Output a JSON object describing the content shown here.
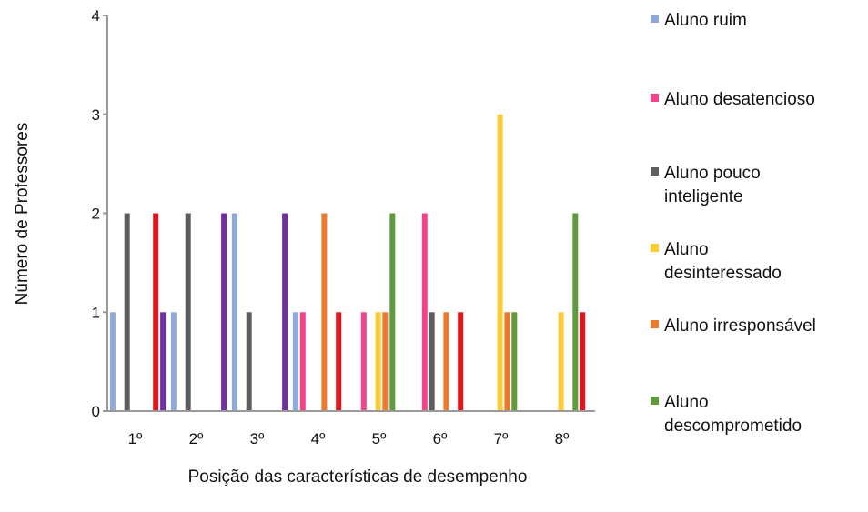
{
  "chart_data": {
    "type": "bar",
    "title": "",
    "xlabel": "Posição das características de desempenho",
    "ylabel": "Número de Professores",
    "categories": [
      "1º",
      "2º",
      "3º",
      "4º",
      "5º",
      "6º",
      "7º",
      "8º"
    ],
    "ylim": [
      0,
      4
    ],
    "yticks": [
      "0",
      "1",
      "2",
      "3",
      "4"
    ],
    "grid": false,
    "legend_position": "right",
    "series": [
      {
        "name": "Aluno ruim",
        "color": "#8eaadb",
        "values": [
          1,
          1,
          2,
          1,
          0,
          0,
          0,
          0
        ]
      },
      {
        "name": "Aluno desatencioso",
        "color": "#f0448b",
        "values": [
          0,
          0,
          0,
          1,
          1,
          2,
          0,
          0
        ]
      },
      {
        "name": "Aluno pouco inteligente",
        "color": "#5d5d5d",
        "values": [
          2,
          2,
          1,
          0,
          0,
          1,
          0,
          0
        ]
      },
      {
        "name": "Aluno desinteressado",
        "color": "#fdcc30",
        "values": [
          0,
          0,
          0,
          0,
          1,
          0,
          3,
          1
        ]
      },
      {
        "name": "Aluno irresponsável",
        "color": "#ea7a2c",
        "values": [
          0,
          0,
          0,
          2,
          1,
          1,
          1,
          0
        ]
      },
      {
        "name": "Aluno descomprometido",
        "color": "#5f9b3a",
        "values": [
          0,
          0,
          0,
          0,
          2,
          0,
          1,
          2
        ]
      },
      {
        "name": "",
        "color": "#e5141a",
        "values": [
          2,
          0,
          0,
          1,
          0,
          1,
          0,
          1
        ]
      },
      {
        "name": "",
        "color": "#7030a0",
        "values": [
          1,
          2,
          2,
          0,
          0,
          0,
          0,
          0
        ]
      }
    ]
  }
}
